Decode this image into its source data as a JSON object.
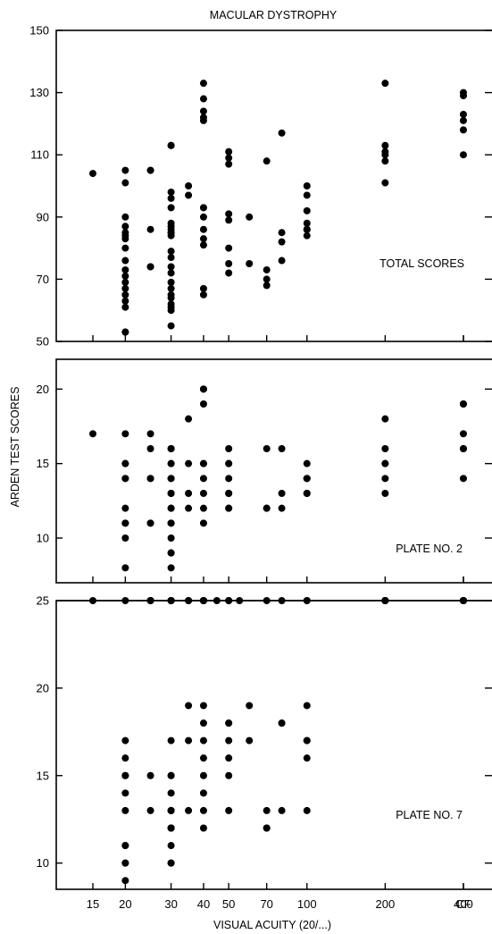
{
  "figure": {
    "title": "MACULAR DYSTROPHY",
    "ylabel": "ARDEN TEST SCORES",
    "xlabel": "VISUAL ACUITY (20/...)",
    "x_ticks": [
      "15",
      "20",
      "30",
      "40",
      "50",
      "70",
      "100",
      "200",
      "400",
      "CF"
    ]
  },
  "chart_data": [
    {
      "type": "scatter",
      "title": "",
      "annotation": "TOTAL SCORES",
      "xlabel": "VISUAL ACUITY (20/...)",
      "ylabel": "ARDEN TEST SCORES",
      "x_scale": "log, CF category at right end",
      "ylim": [
        50,
        150
      ],
      "yticks": [
        50,
        70,
        90,
        110,
        130,
        150
      ],
      "points": [
        [
          15,
          104
        ],
        [
          20,
          53
        ],
        [
          20,
          53
        ],
        [
          20,
          84
        ],
        [
          20,
          85
        ],
        [
          20,
          83
        ],
        [
          20,
          101
        ],
        [
          20,
          105
        ],
        [
          20,
          90
        ],
        [
          20,
          87
        ],
        [
          20,
          80
        ],
        [
          20,
          76
        ],
        [
          20,
          73
        ],
        [
          20,
          71
        ],
        [
          20,
          69
        ],
        [
          20,
          67
        ],
        [
          20,
          65
        ],
        [
          20,
          63
        ],
        [
          20,
          61
        ],
        [
          25,
          74
        ],
        [
          25,
          74
        ],
        [
          25,
          105
        ],
        [
          25,
          105
        ],
        [
          25,
          86
        ],
        [
          30,
          113
        ],
        [
          30,
          113
        ],
        [
          30,
          96
        ],
        [
          30,
          98
        ],
        [
          30,
          93
        ],
        [
          30,
          88
        ],
        [
          30,
          87
        ],
        [
          30,
          86
        ],
        [
          30,
          85
        ],
        [
          30,
          85
        ],
        [
          30,
          84
        ],
        [
          30,
          79
        ],
        [
          30,
          77
        ],
        [
          30,
          74
        ],
        [
          30,
          72
        ],
        [
          30,
          69
        ],
        [
          30,
          67
        ],
        [
          30,
          65
        ],
        [
          30,
          64
        ],
        [
          30,
          62
        ],
        [
          30,
          61
        ],
        [
          30,
          60
        ],
        [
          30,
          55
        ],
        [
          35,
          100
        ],
        [
          35,
          97
        ],
        [
          40,
          133
        ],
        [
          40,
          128
        ],
        [
          40,
          124
        ],
        [
          40,
          122
        ],
        [
          40,
          121
        ],
        [
          40,
          93
        ],
        [
          40,
          90
        ],
        [
          40,
          86
        ],
        [
          40,
          83
        ],
        [
          40,
          81
        ],
        [
          40,
          67
        ],
        [
          40,
          65
        ],
        [
          50,
          111
        ],
        [
          50,
          109
        ],
        [
          50,
          107
        ],
        [
          50,
          91
        ],
        [
          50,
          89
        ],
        [
          50,
          80
        ],
        [
          50,
          75
        ],
        [
          50,
          72
        ],
        [
          60,
          90
        ],
        [
          60,
          75
        ],
        [
          70,
          108
        ],
        [
          70,
          73
        ],
        [
          70,
          70
        ],
        [
          70,
          68
        ],
        [
          80,
          117
        ],
        [
          80,
          85
        ],
        [
          80,
          82
        ],
        [
          80,
          76
        ],
        [
          100,
          100
        ],
        [
          100,
          97
        ],
        [
          100,
          92
        ],
        [
          100,
          88
        ],
        [
          100,
          86
        ],
        [
          100,
          86
        ],
        [
          100,
          86
        ],
        [
          100,
          84
        ],
        [
          200,
          133
        ],
        [
          200,
          113
        ],
        [
          200,
          111
        ],
        [
          200,
          110
        ],
        [
          200,
          108
        ],
        [
          200,
          101
        ],
        [
          400,
          130
        ],
        [
          400,
          123
        ],
        [
          400,
          121
        ],
        [
          400,
          118
        ],
        [
          400,
          110
        ],
        [
          "CF",
          129
        ]
      ]
    },
    {
      "type": "scatter",
      "title": "",
      "annotation": "PLATE NO. 2",
      "xlabel": "VISUAL ACUITY (20/...)",
      "ylabel": "ARDEN TEST SCORES",
      "ylim": [
        7,
        22
      ],
      "yticks": [
        10,
        15,
        20
      ],
      "points": [
        [
          15,
          17
        ],
        [
          20,
          17
        ],
        [
          20,
          15
        ],
        [
          20,
          15
        ],
        [
          20,
          14
        ],
        [
          20,
          14
        ],
        [
          20,
          12
        ],
        [
          20,
          11
        ],
        [
          20,
          11
        ],
        [
          20,
          10
        ],
        [
          20,
          8
        ],
        [
          25,
          17
        ],
        [
          25,
          16
        ],
        [
          25,
          14
        ],
        [
          25,
          14
        ],
        [
          25,
          11
        ],
        [
          25,
          11
        ],
        [
          30,
          16
        ],
        [
          30,
          16
        ],
        [
          30,
          15
        ],
        [
          30,
          15
        ],
        [
          30,
          14
        ],
        [
          30,
          14
        ],
        [
          30,
          13
        ],
        [
          30,
          13
        ],
        [
          30,
          12
        ],
        [
          30,
          12
        ],
        [
          30,
          11
        ],
        [
          30,
          11
        ],
        [
          30,
          10
        ],
        [
          30,
          9
        ],
        [
          30,
          9
        ],
        [
          30,
          8
        ],
        [
          35,
          18
        ],
        [
          35,
          15
        ],
        [
          35,
          13
        ],
        [
          35,
          12
        ],
        [
          40,
          20
        ],
        [
          40,
          20
        ],
        [
          40,
          19
        ],
        [
          40,
          15
        ],
        [
          40,
          15
        ],
        [
          40,
          14
        ],
        [
          40,
          13
        ],
        [
          40,
          12
        ],
        [
          40,
          11
        ],
        [
          50,
          16
        ],
        [
          50,
          15
        ],
        [
          50,
          15
        ],
        [
          50,
          14
        ],
        [
          50,
          13
        ],
        [
          50,
          13
        ],
        [
          50,
          12
        ],
        [
          50,
          12
        ],
        [
          70,
          16
        ],
        [
          70,
          12
        ],
        [
          70,
          12
        ],
        [
          80,
          16
        ],
        [
          80,
          13
        ],
        [
          80,
          12
        ],
        [
          100,
          15
        ],
        [
          100,
          14
        ],
        [
          100,
          14
        ],
        [
          100,
          14
        ],
        [
          100,
          13
        ],
        [
          100,
          13
        ],
        [
          200,
          18
        ],
        [
          200,
          16
        ],
        [
          200,
          15
        ],
        [
          200,
          15
        ],
        [
          200,
          14
        ],
        [
          200,
          13
        ],
        [
          400,
          19
        ],
        [
          400,
          19
        ],
        [
          400,
          17
        ],
        [
          400,
          16
        ],
        [
          400,
          14
        ],
        [
          "CF",
          16
        ]
      ]
    },
    {
      "type": "scatter",
      "title": "",
      "annotation": "PLATE NO. 7",
      "xlabel": "VISUAL ACUITY (20/...)",
      "ylabel": "ARDEN TEST SCORES",
      "ylim": [
        8.5,
        25
      ],
      "yticks": [
        10,
        15,
        20,
        25
      ],
      "reference_line_y": 25,
      "points": [
        [
          15,
          25
        ],
        [
          20,
          25
        ],
        [
          25,
          25
        ],
        [
          25,
          25
        ],
        [
          25,
          25
        ],
        [
          30,
          25
        ],
        [
          30,
          25
        ],
        [
          30,
          25
        ],
        [
          30,
          25
        ],
        [
          30,
          25
        ],
        [
          35,
          25
        ],
        [
          35,
          25
        ],
        [
          40,
          25
        ],
        [
          40,
          25
        ],
        [
          40,
          25
        ],
        [
          40,
          25
        ],
        [
          40,
          25
        ],
        [
          45,
          25
        ],
        [
          50,
          25
        ],
        [
          50,
          25
        ],
        [
          55,
          25
        ],
        [
          70,
          25
        ],
        [
          80,
          25
        ],
        [
          100,
          25
        ],
        [
          100,
          25
        ],
        [
          200,
          25
        ],
        [
          200,
          25
        ],
        [
          200,
          25
        ],
        [
          200,
          25
        ],
        [
          200,
          25
        ],
        [
          200,
          25
        ],
        [
          400,
          25
        ],
        [
          400,
          25
        ],
        [
          400,
          25
        ],
        [
          400,
          25
        ],
        [
          "CF",
          25
        ],
        [
          20,
          17
        ],
        [
          20,
          16
        ],
        [
          20,
          15
        ],
        [
          20,
          15
        ],
        [
          20,
          14
        ],
        [
          20,
          13
        ],
        [
          20,
          11
        ],
        [
          20,
          11
        ],
        [
          20,
          10
        ],
        [
          20,
          10
        ],
        [
          20,
          9
        ],
        [
          25,
          15
        ],
        [
          25,
          13
        ],
        [
          30,
          17
        ],
        [
          30,
          15
        ],
        [
          30,
          15
        ],
        [
          30,
          14
        ],
        [
          30,
          13
        ],
        [
          30,
          13
        ],
        [
          30,
          13
        ],
        [
          30,
          12
        ],
        [
          30,
          12
        ],
        [
          30,
          12
        ],
        [
          30,
          11
        ],
        [
          30,
          10
        ],
        [
          30,
          10
        ],
        [
          35,
          19
        ],
        [
          35,
          17
        ],
        [
          35,
          13
        ],
        [
          40,
          19
        ],
        [
          40,
          18
        ],
        [
          40,
          17
        ],
        [
          40,
          16
        ],
        [
          40,
          15
        ],
        [
          40,
          14
        ],
        [
          40,
          13
        ],
        [
          40,
          12
        ],
        [
          50,
          18
        ],
        [
          50,
          18
        ],
        [
          50,
          17
        ],
        [
          50,
          16
        ],
        [
          50,
          15
        ],
        [
          50,
          13
        ],
        [
          60,
          19
        ],
        [
          60,
          17
        ],
        [
          70,
          13
        ],
        [
          70,
          12
        ],
        [
          70,
          12
        ],
        [
          80,
          18
        ],
        [
          80,
          18
        ],
        [
          80,
          13
        ],
        [
          100,
          19
        ],
        [
          100,
          17
        ],
        [
          100,
          17
        ],
        [
          100,
          16
        ],
        [
          100,
          13
        ]
      ]
    }
  ]
}
